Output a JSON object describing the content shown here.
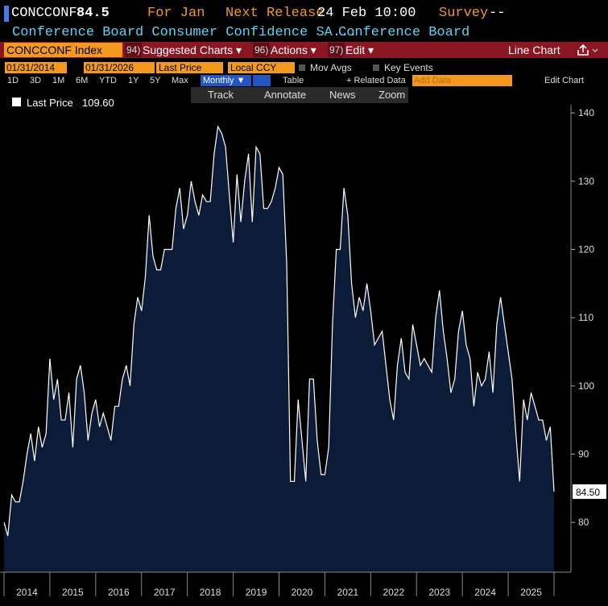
{
  "header": {
    "ticker": "CONCCONF",
    "value": "84.5",
    "for_label": "For Jan",
    "next_release_label": "Next Release",
    "next_release": "24 Feb 10:00",
    "survey_label": "Survey",
    "survey": "--",
    "name": "Conference Board Consumer Confidence SA...",
    "source": "Conference Board"
  },
  "toolbar": {
    "security": "CONCCONF Index",
    "menus": [
      {
        "num": "94)",
        "label": "Suggested Charts ▾"
      },
      {
        "num": "96)",
        "label": "Actions ▾"
      },
      {
        "num": "97)",
        "label": "Edit ▾"
      }
    ],
    "view": "Line Chart"
  },
  "controls": {
    "start_date": "01/31/2014",
    "end_date": "01/31/2026",
    "field": "Last Price",
    "currency": "Local CCY",
    "mov_avgs": "Mov Avgs",
    "key_events": "Key Events"
  },
  "periods": [
    "1D",
    "3D",
    "1M",
    "6M",
    "YTD",
    "1Y",
    "5Y",
    "Max"
  ],
  "frequency": "Monthly ▼",
  "table": "Table",
  "related": "+ Related Data",
  "add_data": "Add Data",
  "edit_chart": "Edit Chart",
  "chart_tools": [
    "Track",
    "Annotate",
    "News",
    "Zoom"
  ],
  "chart_data": {
    "type": "area",
    "legend_value": "109.60",
    "last_label": "84.50",
    "categories": [
      null,
      null,
      null,
      null,
      null,
      null,
      "2014",
      null,
      null,
      null,
      null,
      null,
      null,
      null,
      null,
      null,
      null,
      null,
      "2015",
      null,
      null,
      null,
      null,
      null,
      null,
      null,
      null,
      null,
      null,
      null,
      "2016",
      null,
      null,
      null,
      null,
      null,
      null,
      null,
      null,
      null,
      null,
      null,
      "2017",
      null,
      null,
      null,
      null,
      null,
      null,
      null,
      null,
      null,
      null,
      null,
      "2018",
      null,
      null,
      null,
      null,
      null,
      null,
      null,
      null,
      null,
      null,
      null,
      "2019",
      null,
      null,
      null,
      null,
      null,
      null,
      null,
      null,
      null,
      null,
      null,
      "2020",
      null,
      null,
      null,
      null,
      null,
      null,
      null,
      null,
      null,
      null,
      null,
      "2021",
      null,
      null,
      null,
      null,
      null,
      null,
      null,
      null,
      null,
      null,
      null,
      "2022",
      null,
      null,
      null,
      null,
      null,
      null,
      null,
      null,
      null,
      null,
      null,
      "2023",
      null,
      null,
      null,
      null,
      null,
      null,
      null,
      null,
      null,
      null,
      null,
      "2024",
      null,
      null,
      null,
      null,
      null,
      null,
      null,
      null,
      null,
      null,
      null,
      "2025",
      null,
      null,
      null,
      null,
      null,
      null
    ],
    "series": [
      {
        "name": "Last Price",
        "color": "#ffffff",
        "fill": "#0c1c38",
        "values": [
          80,
          78,
          84,
          83,
          83,
          86,
          90,
          93,
          89,
          94,
          91,
          93,
          104,
          98,
          101,
          95,
          95,
          99,
          91,
          101,
          103,
          99,
          92,
          96,
          98,
          94,
          96,
          94,
          92,
          97,
          97,
          101,
          103,
          100,
          109,
          113,
          111,
          116,
          125,
          119,
          117,
          117,
          120,
          120,
          120,
          126,
          129,
          123,
          125,
          130,
          127,
          125,
          128,
          127,
          127,
          134,
          138,
          137,
          135,
          128,
          121,
          131,
          124,
          130,
          134,
          124,
          135,
          134,
          126,
          126,
          127,
          129,
          132,
          131,
          118,
          86,
          86,
          98,
          92,
          86,
          101,
          101,
          92,
          87,
          87,
          91,
          109,
          120,
          120,
          129,
          125,
          115,
          110,
          113,
          111,
          115,
          111,
          106,
          107,
          108,
          103,
          98,
          95,
          103,
          107,
          102,
          101,
          109,
          106,
          103,
          104,
          103,
          102,
          110,
          114,
          108,
          104,
          99,
          101,
          108,
          111,
          106,
          104,
          97,
          102,
          100,
          101,
          105,
          99,
          109,
          113,
          109,
          105,
          101,
          93,
          86,
          98,
          95,
          99,
          97,
          95,
          95,
          92,
          94,
          84.5
        ]
      }
    ],
    "ylim": [
      72.7,
      141.2
    ],
    "yticks": [
      80,
      90,
      100,
      110,
      120,
      130,
      140
    ]
  }
}
